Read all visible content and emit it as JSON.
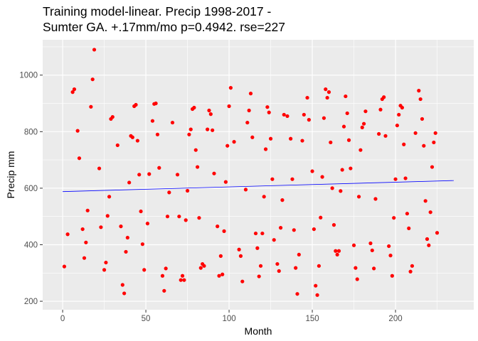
{
  "chart_data": {
    "type": "scatter",
    "title_line1": "Training model-linear. Precip 1998-2017 -",
    "title_line2": "Sumter GA. +.17mm/mo p=0.4942. rse=227",
    "xlabel": "Month",
    "ylabel": "Precip mm",
    "xlim": [
      -12,
      247
    ],
    "ylim": [
      170,
      1125
    ],
    "x_ticks": [
      0,
      50,
      100,
      150,
      200
    ],
    "y_ticks": [
      200,
      400,
      600,
      800,
      1000
    ],
    "grid": true,
    "panel_background": "#ebebeb",
    "point_color": "#ff0000",
    "trend_color": "#0000ff",
    "trend_line": {
      "x": [
        0,
        235
      ],
      "y": [
        588,
        627
      ]
    },
    "points": [
      [
        1,
        323
      ],
      [
        3,
        437
      ],
      [
        6,
        940
      ],
      [
        7,
        950
      ],
      [
        9,
        803
      ],
      [
        10,
        706
      ],
      [
        12,
        455
      ],
      [
        13,
        353
      ],
      [
        14,
        408
      ],
      [
        15,
        521
      ],
      [
        17,
        888
      ],
      [
        18,
        985
      ],
      [
        19,
        1090
      ],
      [
        22,
        670
      ],
      [
        23,
        462
      ],
      [
        25,
        311
      ],
      [
        26,
        337
      ],
      [
        27,
        502
      ],
      [
        28,
        570
      ],
      [
        29,
        845
      ],
      [
        30,
        852
      ],
      [
        33,
        752
      ],
      [
        35,
        465
      ],
      [
        36,
        258
      ],
      [
        37,
        228
      ],
      [
        38,
        375
      ],
      [
        39,
        425
      ],
      [
        40,
        620
      ],
      [
        41,
        785
      ],
      [
        42,
        780
      ],
      [
        43,
        890
      ],
      [
        44,
        895
      ],
      [
        45,
        768
      ],
      [
        46,
        648
      ],
      [
        47,
        518
      ],
      [
        48,
        402
      ],
      [
        49,
        311
      ],
      [
        51,
        475
      ],
      [
        52,
        650
      ],
      [
        54,
        838
      ],
      [
        55,
        898
      ],
      [
        56,
        900
      ],
      [
        57,
        790
      ],
      [
        58,
        672
      ],
      [
        60,
        290
      ],
      [
        61,
        237
      ],
      [
        62,
        316
      ],
      [
        63,
        500
      ],
      [
        64,
        585
      ],
      [
        66,
        832
      ],
      [
        69,
        648
      ],
      [
        70,
        500
      ],
      [
        71,
        275
      ],
      [
        72,
        290
      ],
      [
        73,
        275
      ],
      [
        74,
        487
      ],
      [
        75,
        591
      ],
      [
        76,
        790
      ],
      [
        77,
        808
      ],
      [
        78,
        880
      ],
      [
        79,
        885
      ],
      [
        80,
        735
      ],
      [
        81,
        675
      ],
      [
        82,
        495
      ],
      [
        83,
        318
      ],
      [
        84,
        332
      ],
      [
        85,
        325
      ],
      [
        87,
        808
      ],
      [
        88,
        875
      ],
      [
        89,
        862
      ],
      [
        90,
        805
      ],
      [
        91,
        652
      ],
      [
        93,
        465
      ],
      [
        94,
        290
      ],
      [
        95,
        360
      ],
      [
        96,
        295
      ],
      [
        97,
        448
      ],
      [
        98,
        622
      ],
      [
        99,
        750
      ],
      [
        100,
        890
      ],
      [
        101,
        955
      ],
      [
        103,
        764
      ],
      [
        106,
        383
      ],
      [
        107,
        360
      ],
      [
        108,
        270
      ],
      [
        110,
        595
      ],
      [
        111,
        832
      ],
      [
        112,
        875
      ],
      [
        113,
        935
      ],
      [
        114,
        780
      ],
      [
        116,
        440
      ],
      [
        117,
        388
      ],
      [
        118,
        288
      ],
      [
        119,
        325
      ],
      [
        120,
        440
      ],
      [
        121,
        570
      ],
      [
        122,
        738
      ],
      [
        123,
        887
      ],
      [
        124,
        868
      ],
      [
        125,
        775
      ],
      [
        126,
        632
      ],
      [
        127,
        417
      ],
      [
        129,
        332
      ],
      [
        130,
        307
      ],
      [
        131,
        460
      ],
      [
        132,
        558
      ],
      [
        133,
        860
      ],
      [
        135,
        855
      ],
      [
        137,
        775
      ],
      [
        138,
        632
      ],
      [
        139,
        452
      ],
      [
        140,
        318
      ],
      [
        141,
        226
      ],
      [
        142,
        365
      ],
      [
        144,
        768
      ],
      [
        145,
        860
      ],
      [
        147,
        920
      ],
      [
        148,
        842
      ],
      [
        150,
        660
      ],
      [
        151,
        455
      ],
      [
        152,
        255
      ],
      [
        153,
        222
      ],
      [
        154,
        325
      ],
      [
        155,
        496
      ],
      [
        156,
        640
      ],
      [
        157,
        848
      ],
      [
        158,
        950
      ],
      [
        159,
        920
      ],
      [
        160,
        940
      ],
      [
        161,
        762
      ],
      [
        162,
        600
      ],
      [
        163,
        470
      ],
      [
        164,
        378
      ],
      [
        165,
        365
      ],
      [
        166,
        378
      ],
      [
        167,
        590
      ],
      [
        168,
        665
      ],
      [
        169,
        818
      ],
      [
        170,
        925
      ],
      [
        171,
        865
      ],
      [
        172,
        770
      ],
      [
        173,
        670
      ],
      [
        175,
        398
      ],
      [
        176,
        318
      ],
      [
        177,
        278
      ],
      [
        178,
        570
      ],
      [
        179,
        735
      ],
      [
        180,
        815
      ],
      [
        181,
        828
      ],
      [
        182,
        872
      ],
      [
        185,
        405
      ],
      [
        186,
        380
      ],
      [
        187,
        316
      ],
      [
        188,
        562
      ],
      [
        190,
        792
      ],
      [
        191,
        878
      ],
      [
        192,
        915
      ],
      [
        193,
        922
      ],
      [
        194,
        785
      ],
      [
        196,
        395
      ],
      [
        197,
        362
      ],
      [
        198,
        290
      ],
      [
        199,
        495
      ],
      [
        200,
        632
      ],
      [
        201,
        822
      ],
      [
        202,
        860
      ],
      [
        203,
        892
      ],
      [
        204,
        885
      ],
      [
        205,
        755
      ],
      [
        206,
        635
      ],
      [
        207,
        510
      ],
      [
        208,
        458
      ],
      [
        209,
        305
      ],
      [
        210,
        325
      ],
      [
        212,
        795
      ],
      [
        214,
        945
      ],
      [
        215,
        915
      ],
      [
        216,
        845
      ],
      [
        217,
        750
      ],
      [
        218,
        555
      ],
      [
        219,
        420
      ],
      [
        220,
        398
      ],
      [
        221,
        515
      ],
      [
        222,
        675
      ],
      [
        223,
        762
      ],
      [
        224,
        795
      ],
      [
        225,
        442
      ]
    ]
  }
}
